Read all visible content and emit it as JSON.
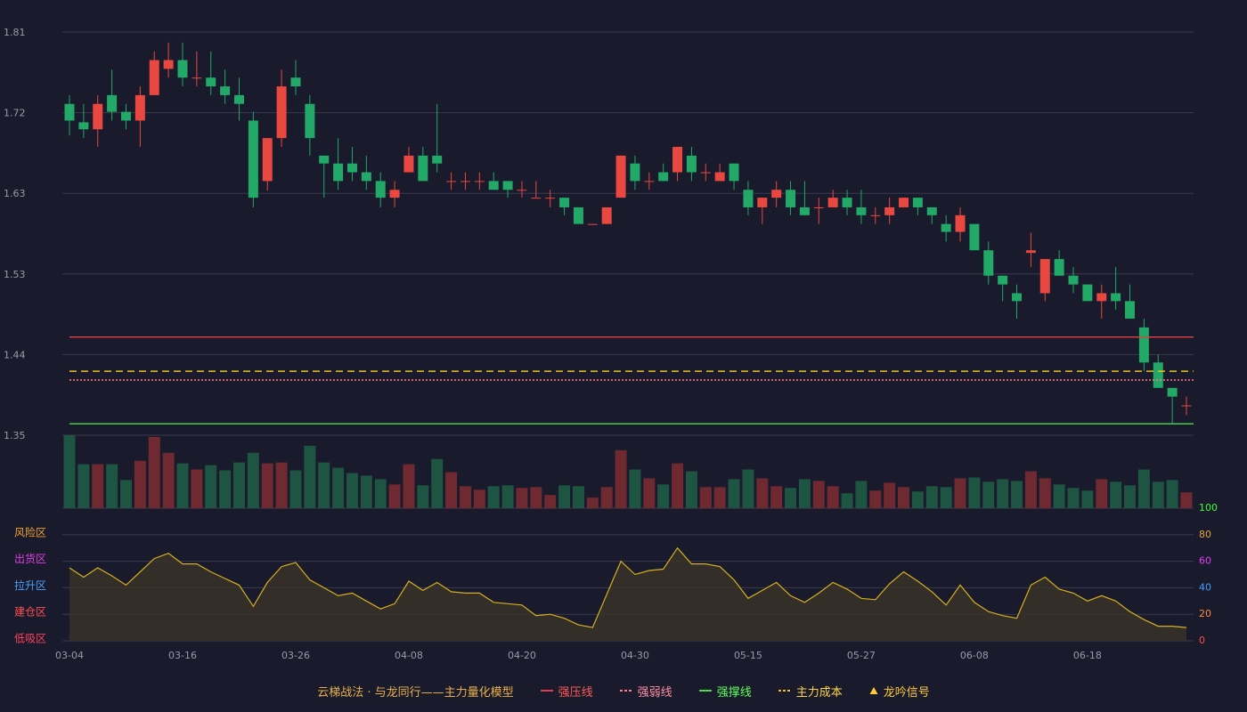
{
  "chart_data": {
    "type": "candlestick",
    "title": "云梯战法 · 与龙同行——主力量化模型",
    "title_color": "#e8b24a",
    "categories": [
      "03-04",
      null,
      null,
      null,
      null,
      null,
      null,
      null,
      "03-16",
      null,
      null,
      null,
      null,
      null,
      null,
      null,
      "03-26",
      null,
      null,
      null,
      null,
      null,
      null,
      null,
      "04-08",
      null,
      null,
      null,
      null,
      null,
      null,
      null,
      "04-20",
      null,
      null,
      null,
      null,
      null,
      null,
      null,
      "04-30",
      null,
      null,
      null,
      null,
      null,
      null,
      null,
      "05-15",
      null,
      null,
      null,
      null,
      null,
      null,
      null,
      "05-27",
      null,
      null,
      null,
      null,
      null,
      null,
      null,
      "06-08",
      null,
      null,
      null,
      null,
      null,
      null,
      null,
      "06-18",
      null,
      null,
      null,
      null,
      null,
      null,
      null
    ],
    "ohlc": [
      [
        1.728,
        1.709,
        1.692,
        1.738
      ],
      [
        1.707,
        1.699,
        1.689,
        1.728
      ],
      [
        1.699,
        1.728,
        1.679,
        1.738
      ],
      [
        1.738,
        1.719,
        1.709,
        1.767
      ],
      [
        1.719,
        1.709,
        1.699,
        1.728
      ],
      [
        1.709,
        1.738,
        1.679,
        1.748
      ],
      [
        1.738,
        1.778,
        1.738,
        1.788
      ],
      [
        1.768,
        1.778,
        1.758,
        1.798
      ],
      [
        1.778,
        1.758,
        1.748,
        1.798
      ],
      [
        1.757,
        1.758,
        1.748,
        1.788
      ],
      [
        1.758,
        1.748,
        1.738,
        1.788
      ],
      [
        1.748,
        1.738,
        1.728,
        1.767
      ],
      [
        1.738,
        1.728,
        1.709,
        1.758
      ],
      [
        1.709,
        1.621,
        1.61,
        1.719
      ],
      [
        1.64,
        1.689,
        1.629,
        1.689
      ],
      [
        1.689,
        1.748,
        1.679,
        1.767
      ],
      [
        1.758,
        1.748,
        1.738,
        1.778
      ],
      [
        1.728,
        1.689,
        1.669,
        1.738
      ],
      [
        1.669,
        1.66,
        1.621,
        1.669
      ],
      [
        1.66,
        1.64,
        1.63,
        1.689
      ],
      [
        1.66,
        1.65,
        1.64,
        1.679
      ],
      [
        1.65,
        1.64,
        1.63,
        1.669
      ],
      [
        1.64,
        1.621,
        1.61,
        1.65
      ],
      [
        1.621,
        1.63,
        1.61,
        1.64
      ],
      [
        1.65,
        1.669,
        1.65,
        1.679
      ],
      [
        1.669,
        1.64,
        1.64,
        1.679
      ],
      [
        1.669,
        1.66,
        1.65,
        1.728
      ],
      [
        1.64,
        1.64,
        1.63,
        1.65
      ],
      [
        1.64,
        1.64,
        1.63,
        1.65
      ],
      [
        1.64,
        1.64,
        1.63,
        1.65
      ],
      [
        1.64,
        1.63,
        1.63,
        1.65
      ],
      [
        1.64,
        1.63,
        1.621,
        1.64
      ],
      [
        1.63,
        1.63,
        1.621,
        1.64
      ],
      [
        1.621,
        1.621,
        1.621,
        1.64
      ],
      [
        1.621,
        1.621,
        1.61,
        1.63
      ],
      [
        1.621,
        1.61,
        1.601,
        1.621
      ],
      [
        1.61,
        1.591,
        1.591,
        1.61
      ],
      [
        1.591,
        1.591,
        1.59,
        1.591
      ],
      [
        1.591,
        1.61,
        1.591,
        1.61
      ],
      [
        1.621,
        1.669,
        1.621,
        1.669
      ],
      [
        1.66,
        1.64,
        1.63,
        1.669
      ],
      [
        1.64,
        1.64,
        1.63,
        1.65
      ],
      [
        1.65,
        1.64,
        1.64,
        1.66
      ],
      [
        1.65,
        1.679,
        1.64,
        1.679
      ],
      [
        1.669,
        1.65,
        1.64,
        1.679
      ],
      [
        1.65,
        1.65,
        1.64,
        1.66
      ],
      [
        1.64,
        1.65,
        1.64,
        1.66
      ],
      [
        1.66,
        1.64,
        1.63,
        1.66
      ],
      [
        1.63,
        1.61,
        1.601,
        1.64
      ],
      [
        1.61,
        1.621,
        1.591,
        1.621
      ],
      [
        1.621,
        1.63,
        1.61,
        1.64
      ],
      [
        1.63,
        1.61,
        1.601,
        1.64
      ],
      [
        1.61,
        1.601,
        1.601,
        1.64
      ],
      [
        1.61,
        1.61,
        1.591,
        1.621
      ],
      [
        1.61,
        1.621,
        1.61,
        1.63
      ],
      [
        1.621,
        1.61,
        1.601,
        1.63
      ],
      [
        1.61,
        1.601,
        1.591,
        1.63
      ],
      [
        1.601,
        1.601,
        1.591,
        1.61
      ],
      [
        1.601,
        1.61,
        1.591,
        1.621
      ],
      [
        1.61,
        1.621,
        1.61,
        1.621
      ],
      [
        1.621,
        1.61,
        1.601,
        1.621
      ],
      [
        1.61,
        1.601,
        1.591,
        1.61
      ],
      [
        1.591,
        1.582,
        1.571,
        1.601
      ],
      [
        1.582,
        1.601,
        1.571,
        1.61
      ],
      [
        1.591,
        1.561,
        1.561,
        1.591
      ],
      [
        1.561,
        1.532,
        1.522,
        1.571
      ],
      [
        1.532,
        1.522,
        1.503,
        1.532
      ],
      [
        1.512,
        1.503,
        1.483,
        1.522
      ],
      [
        1.558,
        1.561,
        1.542,
        1.581
      ],
      [
        1.512,
        1.551,
        1.503,
        1.551
      ],
      [
        1.551,
        1.532,
        1.532,
        1.561
      ],
      [
        1.532,
        1.522,
        1.512,
        1.542
      ],
      [
        1.522,
        1.503,
        1.503,
        1.522
      ],
      [
        1.503,
        1.512,
        1.483,
        1.522
      ],
      [
        1.512,
        1.503,
        1.493,
        1.542
      ],
      [
        1.503,
        1.483,
        1.483,
        1.522
      ],
      [
        1.473,
        1.433,
        1.423,
        1.483
      ],
      [
        1.433,
        1.404,
        1.404,
        1.442
      ],
      [
        1.404,
        1.394,
        1.364,
        1.404
      ],
      [
        1.384,
        1.384,
        1.373,
        1.394
      ]
    ],
    "up_color": "#e8483f",
    "down_color": "#22a867",
    "ylim": [
      1.35,
      1.81
    ],
    "yticks": [
      {
        "value": 1.35,
        "label": "1.35"
      },
      {
        "value": 1.442,
        "label": "1.44"
      },
      {
        "value": 1.534,
        "label": "1.53"
      },
      {
        "value": 1.626,
        "label": "1.63"
      },
      {
        "value": 1.718,
        "label": "1.72"
      },
      1.81
    ],
    "grid": true,
    "levels": [
      {
        "name": "强压线",
        "value": 1.462,
        "color": "#e0404a",
        "text_color": "#ff5a5a",
        "dash": "none"
      },
      {
        "name": "强弱线",
        "value": 1.413,
        "color": "#ff7a8a",
        "text_color": "#ff8fa3",
        "dash": "2 2"
      },
      {
        "name": "强撑线",
        "value": 1.363,
        "color": "#4ddb4d",
        "text_color": "#5cff5c",
        "dash": "none"
      },
      {
        "name": "主力成本",
        "value": 1.423,
        "color": "#e8c020",
        "text_color": "#ffd54a",
        "dash": "8 5"
      }
    ],
    "signal": {
      "name": "龙吟信号",
      "color": "#ffcc33"
    },
    "volume": {
      "values": [
        83,
        50,
        50,
        50,
        32,
        54,
        81,
        63,
        51,
        44,
        49,
        43,
        52,
        63,
        51,
        52,
        43,
        71,
        52,
        46,
        40,
        37,
        33,
        27,
        50,
        26,
        56,
        41,
        25,
        21,
        25,
        26,
        23,
        24,
        15,
        26,
        25,
        12,
        24,
        66,
        44,
        34,
        27,
        51,
        42,
        24,
        24,
        33,
        44,
        34,
        25,
        23,
        33,
        31,
        25,
        17,
        31,
        20,
        29,
        24,
        19,
        25,
        24,
        34,
        35,
        30,
        33,
        31,
        42,
        34,
        27,
        23,
        20,
        33,
        30,
        26,
        44,
        30,
        32,
        18
      ],
      "up_color": "#6e2a30",
      "down_color": "#1d5442"
    },
    "indicator": {
      "values": [
        55,
        48,
        55,
        49,
        42,
        52,
        62,
        66,
        58,
        58,
        52,
        47,
        42,
        26,
        44,
        56,
        59,
        46,
        40,
        34,
        36,
        30,
        24,
        28,
        45,
        38,
        44,
        37,
        36,
        36,
        29,
        28,
        27,
        19,
        20,
        17,
        12,
        10,
        35,
        60,
        50,
        53,
        54,
        70,
        58,
        58,
        56,
        46,
        32,
        38,
        44,
        34,
        29,
        36,
        44,
        39,
        32,
        31,
        43,
        52,
        45,
        37,
        27,
        42,
        29,
        22,
        19,
        17,
        42,
        48,
        39,
        36,
        30,
        34,
        30,
        22,
        16,
        11,
        11,
        10
      ],
      "color": "#d4b020",
      "fill": "#3a3228",
      "ylim": [
        0,
        100
      ],
      "yticks": [
        0,
        20,
        40,
        60,
        80,
        100
      ],
      "ytick_colors": [
        "#ff4d4d",
        "#ff8c42",
        "#4a9eff",
        "#e040fb",
        "#e6a23c",
        "#3cff3c"
      ],
      "zones": [
        {
          "label": "风险区",
          "value": 80,
          "color": "#f0a030"
        },
        {
          "label": "出货区",
          "value": 60,
          "color": "#e040e0"
        },
        {
          "label": "拉升区",
          "value": 40,
          "color": "#4aa0ff"
        },
        {
          "label": "建仓区",
          "value": 20,
          "color": "#ff5050"
        },
        {
          "label": "低吸区",
          "value": 0,
          "color": "#ff4060"
        }
      ]
    }
  }
}
